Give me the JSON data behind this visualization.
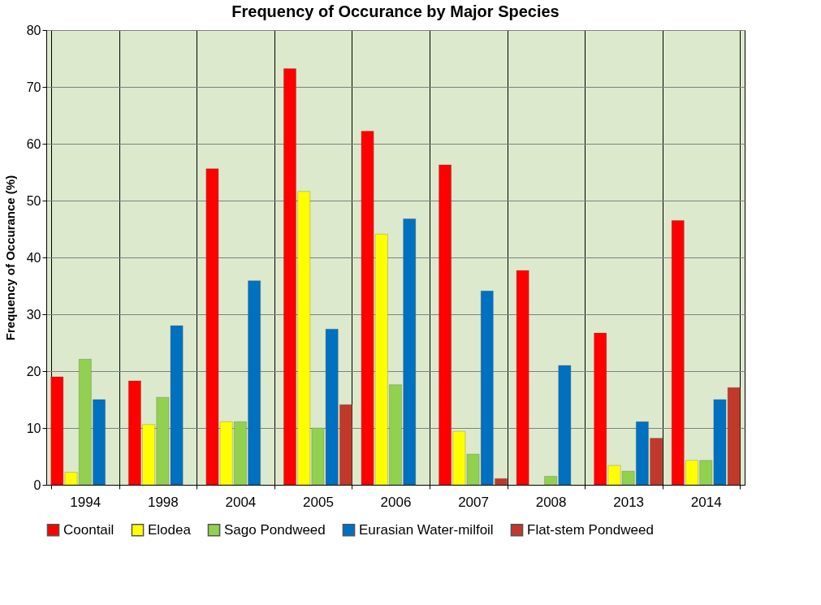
{
  "chart_data": {
    "type": "bar",
    "title": "Frequency of Occurance by Major Species",
    "ylabel": "Frequency of Occurance (%)",
    "categories": [
      "1994",
      "1998",
      "2004",
      "2005",
      "2006",
      "2007",
      "2008",
      "2013",
      "2014"
    ],
    "series": [
      {
        "name": "Coontail",
        "color": "#ff0000",
        "values": [
          19.0,
          18.3,
          55.6,
          73.2,
          62.2,
          56.3,
          37.7,
          26.7,
          46.5
        ]
      },
      {
        "name": "Elodea",
        "color": "#ffff00",
        "values": [
          2.2,
          10.6,
          11.1,
          51.6,
          44.1,
          9.4,
          null,
          3.4,
          4.3
        ]
      },
      {
        "name": "Sago Pondweed",
        "color": "#92d050",
        "values": [
          22.1,
          15.4,
          11.1,
          10.0,
          17.6,
          5.4,
          1.5,
          2.4,
          4.3
        ]
      },
      {
        "name": "Eurasian Water-milfoil",
        "color": "#0070c0",
        "values": [
          15.0,
          28.0,
          35.9,
          27.4,
          46.8,
          34.1,
          21.0,
          11.1,
          15.0
        ]
      },
      {
        "name": "Flat-stem Pondweed",
        "color": "#c0392b",
        "values": [
          null,
          null,
          null,
          14.1,
          null,
          1.1,
          null,
          8.2,
          17.1
        ]
      }
    ],
    "ylim": [
      0,
      80
    ],
    "yticks": [
      0,
      10,
      20,
      30,
      40,
      50,
      60,
      70,
      80
    ],
    "grid": true,
    "legend": "bottom"
  }
}
